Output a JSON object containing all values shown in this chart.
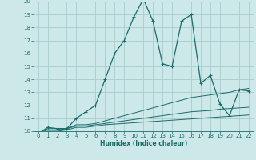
{
  "title": "",
  "xlabel": "Humidex (Indice chaleur)",
  "bg_color": "#cce8e8",
  "grid_color": "#aacccc",
  "line_color": "#1a6b6b",
  "xlim": [
    -0.5,
    22.5
  ],
  "ylim": [
    10,
    20
  ],
  "yticks": [
    10,
    11,
    12,
    13,
    14,
    15,
    16,
    17,
    18,
    19,
    20
  ],
  "xticks": [
    0,
    1,
    2,
    3,
    4,
    5,
    6,
    7,
    8,
    9,
    10,
    11,
    12,
    13,
    14,
    15,
    16,
    17,
    18,
    19,
    20,
    21,
    22
  ],
  "main_x": [
    0,
    1,
    2,
    3,
    4,
    5,
    6,
    7,
    8,
    9,
    10,
    11,
    12,
    13,
    14,
    15,
    16,
    17,
    18,
    19,
    20,
    21,
    22
  ],
  "main_y": [
    9.8,
    10.3,
    10.2,
    10.2,
    11.0,
    11.5,
    12.0,
    14.0,
    16.0,
    17.0,
    18.8,
    20.2,
    18.5,
    15.2,
    15.0,
    18.5,
    19.0,
    13.7,
    14.3,
    12.1,
    11.2,
    13.2,
    13.1
  ],
  "line2_x": [
    0,
    1,
    2,
    3,
    4,
    5,
    6,
    7,
    8,
    9,
    10,
    11,
    12,
    13,
    14,
    15,
    16,
    17,
    18,
    19,
    20,
    21,
    22
  ],
  "line2_y": [
    9.8,
    10.2,
    10.2,
    10.2,
    10.5,
    10.5,
    10.6,
    10.8,
    11.0,
    11.2,
    11.4,
    11.6,
    11.8,
    12.0,
    12.2,
    12.4,
    12.6,
    12.7,
    12.8,
    12.9,
    13.0,
    13.2,
    13.3
  ],
  "line3_x": [
    0,
    1,
    2,
    3,
    4,
    5,
    6,
    7,
    8,
    9,
    10,
    11,
    12,
    13,
    14,
    15,
    16,
    17,
    18,
    19,
    20,
    21,
    22
  ],
  "line3_y": [
    9.8,
    10.1,
    10.1,
    10.2,
    10.4,
    10.4,
    10.5,
    10.6,
    10.7,
    10.8,
    10.9,
    11.0,
    11.1,
    11.2,
    11.3,
    11.4,
    11.5,
    11.55,
    11.6,
    11.7,
    11.75,
    11.8,
    11.85
  ],
  "line4_x": [
    0,
    1,
    2,
    3,
    4,
    5,
    6,
    7,
    8,
    9,
    10,
    11,
    12,
    13,
    14,
    15,
    16,
    17,
    18,
    19,
    20,
    21,
    22
  ],
  "line4_y": [
    9.8,
    10.0,
    10.0,
    10.1,
    10.3,
    10.3,
    10.4,
    10.5,
    10.55,
    10.6,
    10.65,
    10.7,
    10.75,
    10.8,
    10.85,
    10.9,
    10.95,
    11.0,
    11.05,
    11.1,
    11.15,
    11.2,
    11.25
  ],
  "xlabel_fontsize": 5.5,
  "tick_fontsize": 5.0,
  "lw_main": 0.9,
  "lw_ref": 0.7,
  "marker_size": 3.5
}
